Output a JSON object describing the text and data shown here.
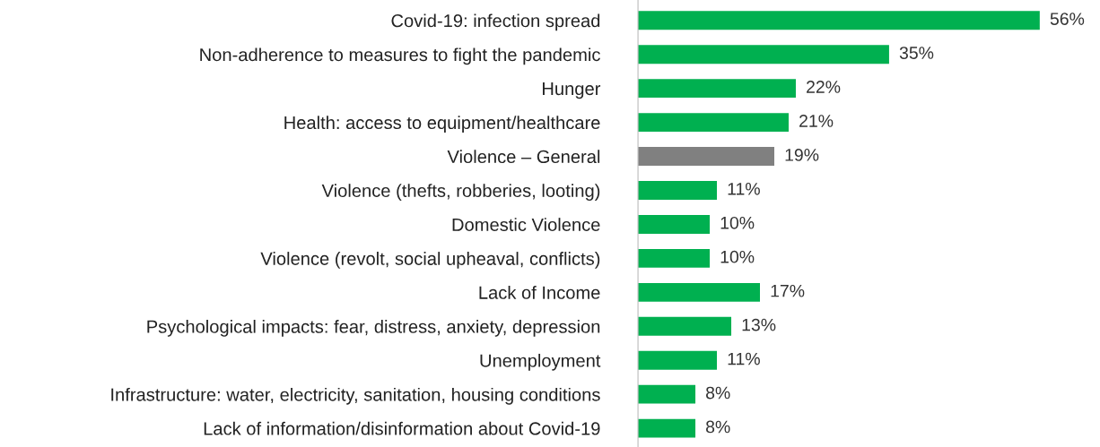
{
  "chart_data": {
    "type": "bar",
    "orientation": "horizontal",
    "categories": [
      "Covid-19: infection spread",
      "Non-adherence to measures to fight the pandemic",
      "Hunger",
      "Health: access to equipment/healthcare",
      "Violence – General",
      "Violence (thefts, robberies, looting)",
      "Domestic Violence",
      "Violence (revolt, social upheaval, conflicts)",
      "Lack of Income",
      "Psychological impacts: fear, distress, anxiety, depression",
      "Unemployment",
      "Infrastructure: water, electricity, sanitation, housing conditions",
      "Lack of information/disinformation about Covid-19"
    ],
    "values": [
      56,
      35,
      22,
      21,
      19,
      11,
      10,
      10,
      17,
      13,
      11,
      8,
      8
    ],
    "colors": [
      "#00b050",
      "#00b050",
      "#00b050",
      "#00b050",
      "#808080",
      "#00b050",
      "#00b050",
      "#00b050",
      "#00b050",
      "#00b050",
      "#00b050",
      "#00b050",
      "#00b050"
    ],
    "value_labels": [
      "56%",
      "35%",
      "22%",
      "21%",
      "19%",
      "11%",
      "10%",
      "10%",
      "17%",
      "13%",
      "11%",
      "8%",
      "8%"
    ],
    "grid": false,
    "legend": false
  }
}
